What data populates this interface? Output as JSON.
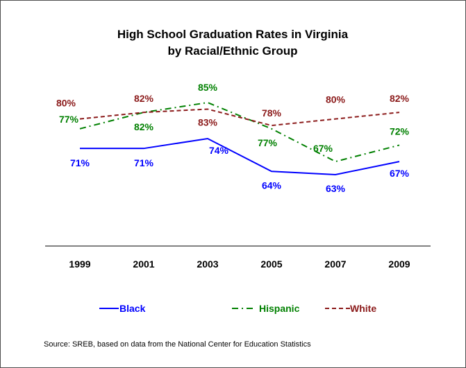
{
  "chart_data": {
    "type": "line",
    "title": "High School Graduation Rates in Virginia",
    "subtitle": "by Racial/Ethnic Group",
    "xlabel": "",
    "ylabel": "",
    "categories": [
      "1999",
      "2001",
      "2003",
      "2005",
      "2007",
      "2009"
    ],
    "ylim": [
      0,
      100
    ],
    "grid": false,
    "legend": "bottom",
    "series": [
      {
        "name": "Black",
        "values": [
          71,
          71,
          74,
          64,
          63,
          67
        ],
        "labels": [
          "71%",
          "71%",
          "74%",
          "64%",
          "63%",
          "67%"
        ],
        "color": "#0000ff",
        "style": "solid"
      },
      {
        "name": "Hispanic",
        "values": [
          77,
          82,
          85,
          77,
          67,
          72
        ],
        "labels": [
          "77%",
          "82%",
          "85%",
          "77%",
          "67%",
          "72%"
        ],
        "color": "#008000",
        "style": "dash-dot"
      },
      {
        "name": "White",
        "values": [
          80,
          82,
          83,
          78,
          80,
          82
        ],
        "labels": [
          "80%",
          "82%",
          "83%",
          "78%",
          "80%",
          "82%"
        ],
        "color": "#8b1a1a",
        "style": "dashed"
      }
    ],
    "source": "Source: SREB, based on data from the National Center for Education Statistics"
  }
}
